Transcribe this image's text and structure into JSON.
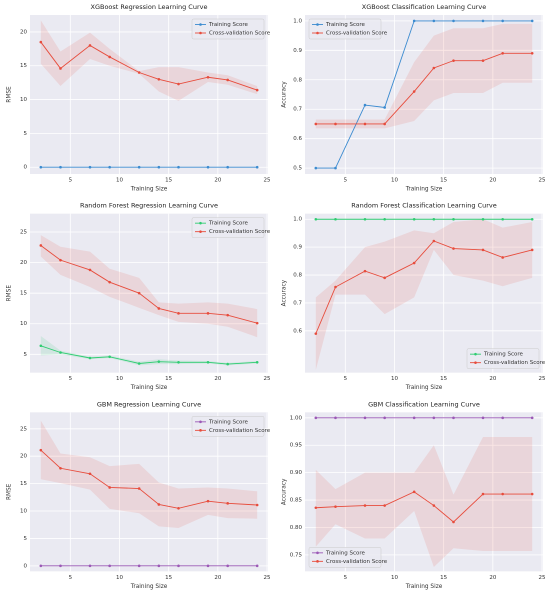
{
  "chart_data": [
    {
      "type": "line",
      "title": "XGBoost Regression Learning Curve",
      "x_label": "Training Size",
      "y_label": "RMSE",
      "x": [
        2,
        4,
        7,
        9,
        12,
        14,
        16,
        19,
        21,
        24
      ],
      "xlim": [
        0.9,
        25.1
      ],
      "xticks": [
        5,
        10,
        15,
        20,
        25
      ],
      "ylim": [
        -1,
        22.5
      ],
      "yticks": [
        0,
        5,
        10,
        15,
        20
      ],
      "grid": true,
      "legend": "upper right",
      "series": [
        {
          "name": "Training Score",
          "color": "#3b8bd0",
          "values": [
            0,
            0,
            0,
            0,
            0,
            0,
            0,
            0,
            0,
            0
          ]
        },
        {
          "name": "Cross-validation Score",
          "color": "#e74c3c",
          "values": [
            18.5,
            14.6,
            18,
            16.3,
            14,
            13,
            12.3,
            13.3,
            12.9,
            11.4
          ],
          "lower": [
            15.3,
            12,
            16,
            15,
            13.8,
            11.2,
            9.8,
            12.6,
            12.2,
            10.8
          ],
          "upper": [
            21.7,
            17.1,
            19.9,
            17.5,
            14.2,
            14.8,
            14.8,
            14,
            13.6,
            12
          ]
        }
      ]
    },
    {
      "type": "line",
      "title": "XGBoost Classification Learning Curve",
      "x_label": "Training Size",
      "y_label": "Accuracy",
      "x": [
        2,
        4,
        7,
        9,
        12,
        14,
        16,
        19,
        21,
        24
      ],
      "xlim": [
        0.9,
        25.1
      ],
      "xticks": [
        5,
        10,
        15,
        20,
        25
      ],
      "ylim": [
        0.48,
        1.02
      ],
      "yticks": [
        0.5,
        0.6,
        0.7,
        0.8,
        0.9,
        {
          "value": 1,
          "label": "1.0"
        }
      ],
      "grid": true,
      "legend": "upper left",
      "series": [
        {
          "name": "Training Score",
          "color": "#3b8bd0",
          "values": [
            0.5,
            0.5,
            0.714,
            0.706,
            1,
            1,
            1,
            1,
            1,
            1
          ]
        },
        {
          "name": "Cross-validation Score",
          "color": "#e74c3c",
          "values": [
            0.65,
            0.65,
            0.65,
            0.65,
            0.76,
            0.84,
            0.865,
            0.865,
            0.89,
            0.89
          ],
          "lower": [
            0.635,
            0.635,
            0.635,
            0.635,
            0.66,
            0.73,
            0.755,
            0.755,
            0.79,
            0.79
          ],
          "upper": [
            0.665,
            0.665,
            0.665,
            0.665,
            0.86,
            0.95,
            0.975,
            0.975,
            0.99,
            0.99
          ]
        }
      ]
    },
    {
      "type": "line",
      "title": "Random Forest Regression Learning Curve",
      "x_label": "Training Size",
      "y_label": "RMSE",
      "x": [
        2,
        4,
        7,
        9,
        12,
        14,
        16,
        19,
        21,
        24
      ],
      "xlim": [
        0.9,
        25.1
      ],
      "xticks": [
        5,
        10,
        15,
        20,
        25
      ],
      "ylim": [
        2,
        28
      ],
      "yticks": [
        5,
        10,
        15,
        20,
        25
      ],
      "grid": true,
      "legend": "upper right",
      "series": [
        {
          "name": "Training Score",
          "color": "#2ecc71",
          "values": [
            6.4,
            5.3,
            4.4,
            4.6,
            3.5,
            3.8,
            3.7,
            3.7,
            3.4,
            3.7
          ],
          "lower": [
            4.8,
            5,
            4.2,
            4.4,
            3.2,
            3.4,
            3.4,
            3.5,
            3.2,
            3.5
          ],
          "upper": [
            8,
            5.6,
            4.6,
            4.8,
            3.8,
            4.2,
            4,
            3.9,
            3.6,
            3.9
          ]
        },
        {
          "name": "Cross-validation Score",
          "color": "#e74c3c",
          "values": [
            22.8,
            20.4,
            18.8,
            16.8,
            15,
            12.5,
            11.7,
            11.7,
            11.4,
            10.1
          ],
          "lower": [
            21,
            18,
            16,
            14.4,
            12.6,
            11.4,
            10.3,
            10,
            9.5,
            7.8
          ],
          "upper": [
            24.5,
            22.6,
            21.8,
            19,
            17.5,
            13.5,
            13.3,
            13.5,
            13.3,
            12.4
          ]
        }
      ]
    },
    {
      "type": "line",
      "title": "Random Forest Classification Learning Curve",
      "x_label": "Training Size",
      "y_label": "Accuracy",
      "x": [
        2,
        4,
        7,
        9,
        12,
        14,
        16,
        19,
        21,
        24
      ],
      "xlim": [
        0.9,
        25.1
      ],
      "xticks": [
        5,
        10,
        15,
        20,
        25
      ],
      "ylim": [
        0.45,
        1.02
      ],
      "yticks": [
        0.6,
        0.7,
        0.8,
        0.9,
        {
          "value": 1,
          "label": "1.0"
        }
      ],
      "grid": true,
      "legend": "lower right",
      "series": [
        {
          "name": "Training Score",
          "color": "#2ecc71",
          "values": [
            1,
            1,
            1,
            1,
            1,
            1,
            1,
            1,
            1,
            1
          ]
        },
        {
          "name": "Cross-validation Score",
          "color": "#e74c3c",
          "values": [
            0.59,
            0.757,
            0.814,
            0.79,
            0.843,
            0.922,
            0.895,
            0.89,
            0.863,
            0.89
          ],
          "lower": [
            0.46,
            0.73,
            0.73,
            0.66,
            0.72,
            0.89,
            0.8,
            0.78,
            0.76,
            0.79
          ],
          "upper": [
            0.72,
            0.78,
            0.9,
            0.92,
            0.96,
            0.95,
            0.99,
            1,
            0.97,
            0.99
          ]
        }
      ]
    },
    {
      "type": "line",
      "title": "GBM Regression Learning Curve",
      "x_label": "Training Size",
      "y_label": "RMSE",
      "x": [
        2,
        4,
        7,
        9,
        12,
        14,
        16,
        19,
        21,
        24
      ],
      "xlim": [
        0.9,
        25.1
      ],
      "xticks": [
        5,
        10,
        15,
        20,
        25
      ],
      "ylim": [
        -1,
        28
      ],
      "yticks": [
        0,
        5,
        10,
        15,
        20,
        25
      ],
      "grid": true,
      "legend": "upper right",
      "series": [
        {
          "name": "Training Score",
          "color": "#9b59b6",
          "values": [
            0,
            0,
            0,
            0,
            0,
            0,
            0,
            0,
            0,
            0
          ]
        },
        {
          "name": "Cross-validation Score",
          "color": "#e74c3c",
          "values": [
            21.1,
            17.8,
            16.8,
            14.3,
            14.1,
            11.2,
            10.5,
            11.8,
            11.4,
            11.1
          ],
          "lower": [
            15.8,
            15.1,
            13.9,
            10.4,
            9.6,
            7.2,
            6.9,
            9.3,
            8.7,
            8.6
          ],
          "upper": [
            26.5,
            20.5,
            19.8,
            18.2,
            18.6,
            15.2,
            14.1,
            14.3,
            14.1,
            13.6
          ]
        }
      ]
    },
    {
      "type": "line",
      "title": "GBM Classification Learning Curve",
      "x_label": "Training Size",
      "y_label": "Accuracy",
      "x": [
        2,
        4,
        7,
        9,
        12,
        14,
        16,
        19,
        21,
        24
      ],
      "xlim": [
        0.9,
        25.1
      ],
      "xticks": [
        5,
        10,
        15,
        20,
        25
      ],
      "ylim": [
        0.72,
        1.01
      ],
      "yticks": [
        {
          "value": 0.75,
          "label": "0.75"
        },
        {
          "value": 0.8,
          "label": "0.80"
        },
        {
          "value": 0.85,
          "label": "0.85"
        },
        {
          "value": 0.9,
          "label": "0.90"
        },
        {
          "value": 0.95,
          "label": "0.95"
        },
        {
          "value": 1,
          "label": "1.00"
        }
      ],
      "grid": true,
      "legend": "lower left",
      "series": [
        {
          "name": "Training Score",
          "color": "#9b59b6",
          "values": [
            1,
            1,
            1,
            1,
            1,
            1,
            1,
            1,
            1,
            1
          ]
        },
        {
          "name": "Cross-validation Score",
          "color": "#e74c3c",
          "values": [
            0.836,
            0.838,
            0.84,
            0.84,
            0.865,
            0.84,
            0.81,
            0.861,
            0.861,
            0.861
          ],
          "lower": [
            0.765,
            0.806,
            0.78,
            0.78,
            0.83,
            0.728,
            0.762,
            0.757,
            0.757,
            0.757
          ],
          "upper": [
            0.905,
            0.87,
            0.9,
            0.9,
            0.9,
            0.95,
            0.86,
            0.965,
            0.965,
            0.965
          ]
        }
      ]
    }
  ]
}
